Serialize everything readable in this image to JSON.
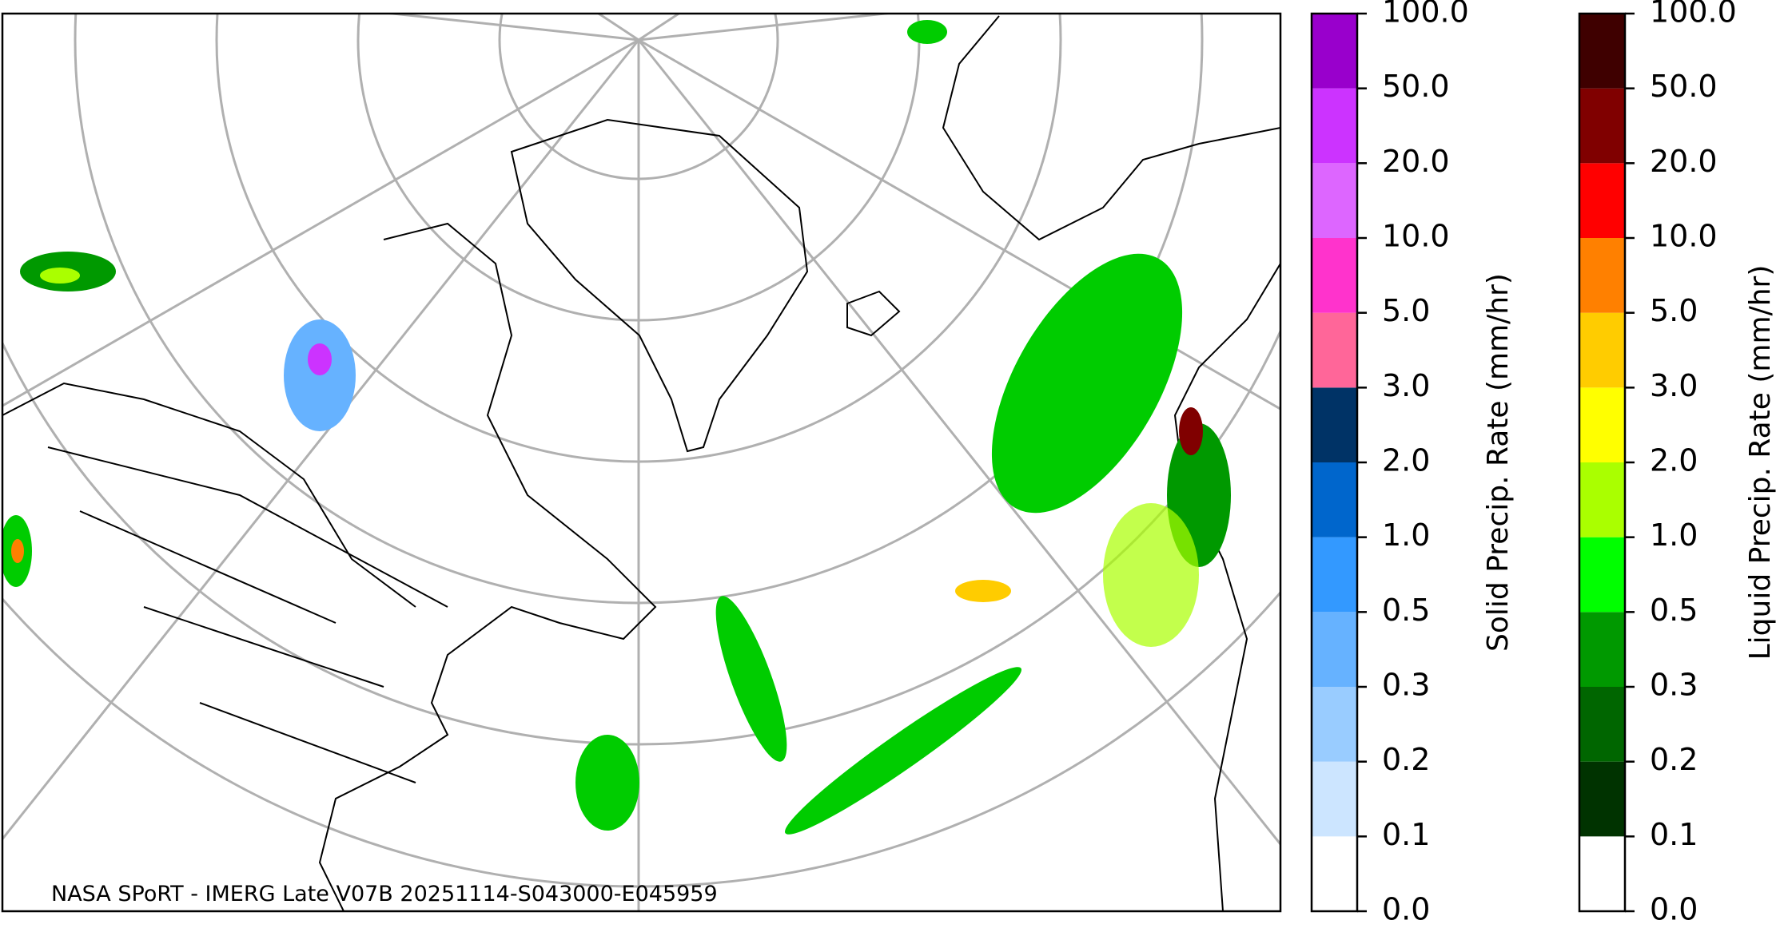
{
  "caption": "NASA SPoRT - IMERG Late V07B 20251114-S043000-E045959",
  "colorbars": [
    {
      "title": "Solid Precip. Rate (mm/hr)",
      "ticks": [
        {
          "value": 0,
          "label": "0.0"
        },
        {
          "value": 0.1,
          "label": "0.1"
        },
        {
          "value": 0.2,
          "label": "0.2"
        },
        {
          "value": 0.3,
          "label": "0.3"
        },
        {
          "value": 0.5,
          "label": "0.5"
        },
        {
          "value": 1,
          "label": "1.0"
        },
        {
          "value": 2,
          "label": "2.0"
        },
        {
          "value": 3,
          "label": "3.0"
        },
        {
          "value": 5,
          "label": "5.0"
        },
        {
          "value": 10,
          "label": "10.0"
        },
        {
          "value": 20,
          "label": "20.0"
        },
        {
          "value": 50,
          "label": "50.0"
        },
        {
          "value": 100,
          "label": "100.0"
        }
      ],
      "colors": [
        "#ffffff",
        "#cce5ff",
        "#99ccff",
        "#66b2ff",
        "#3399ff",
        "#0066cc",
        "#003366",
        "#ff6699",
        "#ff33cc",
        "#dd66ff",
        "#cc33ff",
        "#9900cc"
      ]
    },
    {
      "title": "Liquid Precip. Rate (mm/hr)",
      "ticks": [
        {
          "value": 0,
          "label": "0.0"
        },
        {
          "value": 0.1,
          "label": "0.1"
        },
        {
          "value": 0.2,
          "label": "0.2"
        },
        {
          "value": 0.3,
          "label": "0.3"
        },
        {
          "value": 0.5,
          "label": "0.5"
        },
        {
          "value": 1,
          "label": "1.0"
        },
        {
          "value": 2,
          "label": "2.0"
        },
        {
          "value": 3,
          "label": "3.0"
        },
        {
          "value": 5,
          "label": "5.0"
        },
        {
          "value": 10,
          "label": "10.0"
        },
        {
          "value": 20,
          "label": "20.0"
        },
        {
          "value": 50,
          "label": "50.0"
        },
        {
          "value": 100,
          "label": "100.0"
        }
      ],
      "colors": [
        "#ffffff",
        "#003300",
        "#006600",
        "#009900",
        "#00ff00",
        "#aaff00",
        "#ffff00",
        "#ffcc00",
        "#ff8000",
        "#ff0000",
        "#800000",
        "#3f0000"
      ]
    }
  ]
}
